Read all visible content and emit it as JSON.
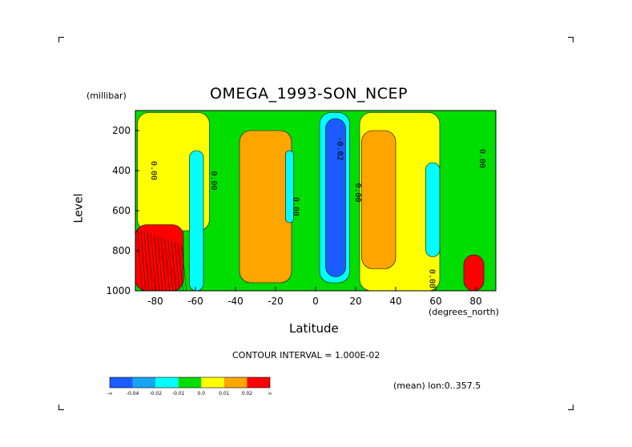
{
  "chart_data": {
    "type": "heatmap",
    "title": "OMEGA_1993-SON_NCEP",
    "xlabel": "Latitude",
    "x_units": "(degrees_north)",
    "ylabel": "Level",
    "y_units": "(millibar)",
    "xlim": [
      -90,
      90
    ],
    "ylim": [
      1000,
      100
    ],
    "x_ticks": [
      "-80",
      "-60",
      "-40",
      "-20",
      "0",
      "20",
      "40",
      "60",
      "80"
    ],
    "y_ticks": [
      "200",
      "400",
      "600",
      "800",
      "1000"
    ],
    "contour_interval_label": "CONTOUR INTERVAL = 1.000E-02",
    "footnote": "(mean) lon:0..357.5",
    "colorbar": {
      "labels": [
        "-∞",
        "-0.04",
        "-0.02",
        "-0.01",
        "0.0",
        "0.01",
        "0.02",
        "∞"
      ],
      "colors": [
        "#1a5cff",
        "#13a6f5",
        "#00ffff",
        "#00dd00",
        "#ffff00",
        "#ffa500",
        "#ff0000"
      ]
    },
    "contour_labels": [
      {
        "text": "0.00",
        "lat": -82,
        "level": 400
      },
      {
        "text": "0.00",
        "lat": -52,
        "level": 450
      },
      {
        "text": "0.00",
        "lat": -11,
        "level": 580
      },
      {
        "text": "-0.02",
        "lat": 11,
        "level": 290
      },
      {
        "text": "0.00",
        "lat": 20,
        "level": 510
      },
      {
        "text": "0.00",
        "lat": 57,
        "level": 940
      },
      {
        "text": "0.00",
        "lat": 82,
        "level": 340
      }
    ],
    "regions": [
      {
        "value": "yellow",
        "lat": [
          -89,
          -53
        ],
        "level": [
          110,
          700
        ]
      },
      {
        "value": "orange",
        "lat": [
          -38,
          -12
        ],
        "level": [
          200,
          960
        ]
      },
      {
        "value": "yellow",
        "lat": [
          22,
          62
        ],
        "level": [
          110,
          1000
        ]
      },
      {
        "value": "cyan",
        "lat": [
          -63,
          -56
        ],
        "level": [
          300,
          1000
        ]
      },
      {
        "value": "cyan",
        "lat": [
          -15,
          -11
        ],
        "level": [
          300,
          660
        ]
      },
      {
        "value": "cyan",
        "lat": [
          2,
          17
        ],
        "level": [
          110,
          960
        ]
      },
      {
        "value": "blue",
        "lat": [
          5,
          15
        ],
        "level": [
          140,
          930
        ]
      },
      {
        "value": "orange",
        "lat": [
          23,
          40
        ],
        "level": [
          200,
          890
        ]
      },
      {
        "value": "cyan",
        "lat": [
          55,
          62
        ],
        "level": [
          360,
          830
        ]
      },
      {
        "value": "red",
        "lat": [
          -90,
          -66
        ],
        "level": [
          670,
          1000
        ]
      },
      {
        "value": "red",
        "lat": [
          74,
          84
        ],
        "level": [
          820,
          1000
        ]
      }
    ]
  }
}
